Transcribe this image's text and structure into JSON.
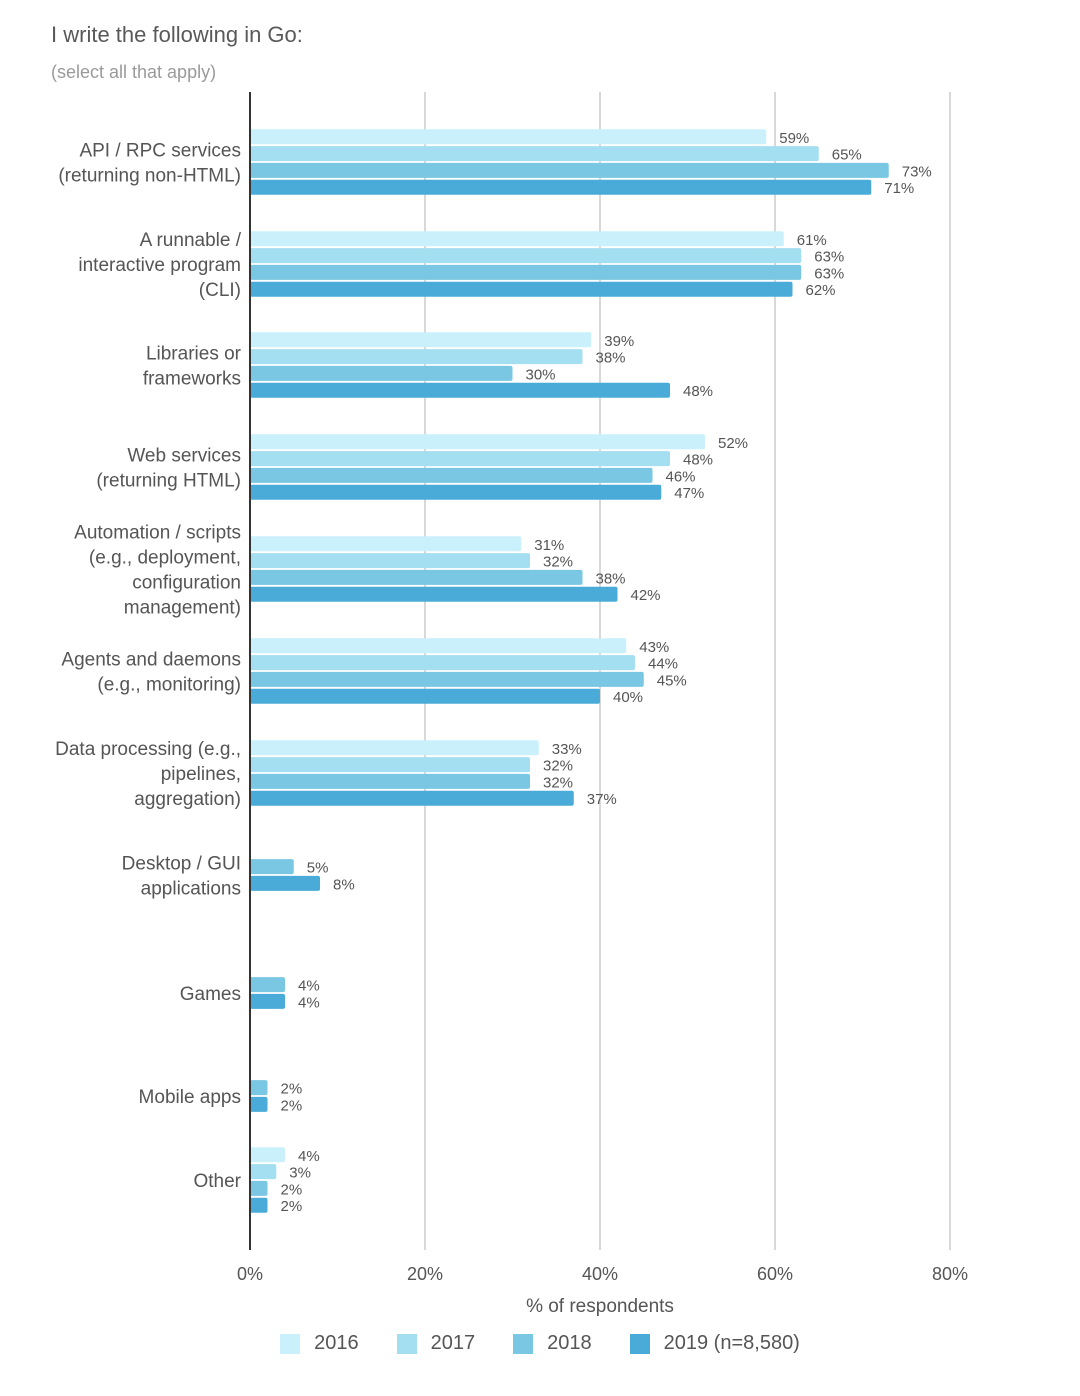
{
  "header": {
    "title": "I write the following in Go:",
    "subtitle": "(select all that apply)"
  },
  "chart_data": {
    "type": "bar",
    "orientation": "horizontal",
    "title": "I write the following in Go:",
    "subtitle": "(select all that apply)",
    "xlabel": "% of respondents",
    "ylabel": "",
    "xlim": [
      0,
      80
    ],
    "x_ticks": [
      "0%",
      "20%",
      "40%",
      "60%",
      "80%"
    ],
    "grid": true,
    "legend_position": "bottom",
    "categories": [
      [
        "API / RPC services",
        "(returning non-HTML)"
      ],
      [
        "A runnable /",
        "interactive program",
        "(CLI)"
      ],
      [
        "Libraries or",
        "frameworks"
      ],
      [
        "Web services",
        "(returning HTML)"
      ],
      [
        "Automation / scripts",
        "(e.g., deployment,",
        "configuration",
        "management)"
      ],
      [
        "Agents and daemons",
        "(e.g., monitoring)"
      ],
      [
        "Data processing (e.g.,",
        "pipelines,",
        "aggregation)"
      ],
      [
        "Desktop / GUI",
        "applications"
      ],
      [
        "Games"
      ],
      [
        "Mobile apps"
      ],
      [
        "Other"
      ]
    ],
    "series": [
      {
        "name": "2016",
        "color": "#c9f0fb",
        "values": [
          59,
          61,
          39,
          52,
          31,
          43,
          33,
          null,
          null,
          null,
          4
        ]
      },
      {
        "name": "2017",
        "color": "#a4def1",
        "values": [
          65,
          63,
          38,
          48,
          32,
          44,
          32,
          null,
          null,
          null,
          3
        ]
      },
      {
        "name": "2018",
        "color": "#79c7e2",
        "values": [
          73,
          63,
          30,
          46,
          38,
          45,
          32,
          5,
          4,
          2,
          2
        ]
      },
      {
        "name": "2019 (n=8,580)",
        "color": "#4aabd8",
        "values": [
          71,
          62,
          48,
          47,
          42,
          40,
          37,
          8,
          4,
          2,
          2
        ]
      }
    ],
    "value_suffix": "%"
  }
}
